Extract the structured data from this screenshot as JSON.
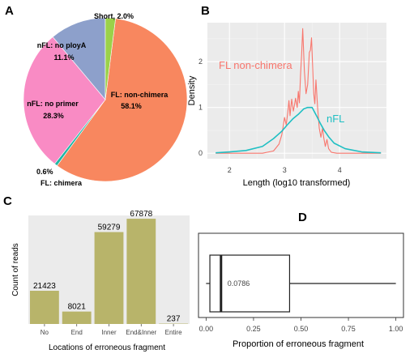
{
  "chart_data": [
    {
      "panel": "A",
      "type": "pie",
      "slices": [
        {
          "label": "FL: non-chimera",
          "percent": 58.1,
          "value": "58.1%",
          "color": "#F8875F"
        },
        {
          "label": "FL: chimera",
          "percent": 0.6,
          "value": "0.6%",
          "color": "#20B7A5"
        },
        {
          "label": "nFL: no primer",
          "percent": 28.3,
          "value": "28.3%",
          "color": "#F98BC4"
        },
        {
          "label": "nFL: no ployA",
          "percent": 11.1,
          "value": "11.1%",
          "color": "#8DA0CB"
        },
        {
          "label": "Short",
          "percent": 2.0,
          "value": "2.0%",
          "color": "#9BD149"
        }
      ]
    },
    {
      "panel": "B",
      "type": "line",
      "xlabel": "Length (log10 transformed)",
      "ylabel": "Density",
      "xlim": [
        1.6,
        4.85
      ],
      "ylim": [
        -0.12,
        2.85
      ],
      "xticks": [
        "2",
        "3",
        "4"
      ],
      "yticks": [
        "0",
        "1",
        "2"
      ],
      "background": "#EBEBEB",
      "grid": true,
      "series": [
        {
          "name": "FL non-chimera",
          "color": "#F8766D",
          "x": [
            1.75,
            2.6,
            2.8,
            2.9,
            2.95,
            2.98,
            3.0,
            3.03,
            3.06,
            3.08,
            3.1,
            3.13,
            3.16,
            3.18,
            3.2,
            3.23,
            3.25,
            3.27,
            3.29,
            3.31,
            3.33,
            3.36,
            3.39,
            3.42,
            3.45,
            3.47,
            3.49,
            3.51,
            3.53,
            3.55,
            3.57,
            3.6,
            3.63,
            3.66,
            3.69,
            3.71,
            3.74,
            3.77,
            3.8,
            3.85,
            3.95,
            4.75
          ],
          "y": [
            0,
            0,
            0.05,
            0.2,
            0.4,
            0.62,
            0.78,
            0.62,
            0.9,
            1.15,
            0.82,
            1.18,
            0.92,
            1.05,
            1.2,
            1.0,
            1.35,
            1.1,
            1.7,
            2.15,
            2.72,
            1.8,
            1.3,
            1.5,
            2.2,
            2.25,
            2.52,
            1.9,
            1.3,
            1.08,
            1.6,
            1.0,
            0.55,
            0.35,
            0.55,
            0.35,
            0.15,
            0.3,
            0.1,
            0.02,
            0,
            0
          ]
        },
        {
          "name": "nFL",
          "color": "#1FBFC3",
          "x": [
            1.75,
            2.0,
            2.3,
            2.6,
            2.8,
            2.95,
            3.05,
            3.15,
            3.25,
            3.35,
            3.42,
            3.5,
            3.58,
            3.65,
            3.72,
            3.8,
            3.9,
            4.1,
            4.4,
            4.75
          ],
          "y": [
            0.01,
            0.03,
            0.06,
            0.15,
            0.32,
            0.48,
            0.62,
            0.75,
            0.85,
            0.97,
            1.0,
            1.0,
            0.82,
            0.65,
            0.5,
            0.36,
            0.22,
            0.1,
            0.03,
            0.01
          ]
        }
      ]
    },
    {
      "panel": "C",
      "type": "bar",
      "xlabel": "Locations of erroneous fragment",
      "ylabel": "Count of reads",
      "categories": [
        "No",
        "End",
        "Inner",
        "End&Inner",
        "Entire"
      ],
      "values": [
        21423,
        8021,
        59279,
        67878,
        237
      ],
      "ylim": [
        0,
        70000
      ],
      "bar_color": "#B8B46A",
      "background": "#EBEBEB"
    },
    {
      "panel": "D",
      "type": "box",
      "xlabel": "Proportion of erroneous fragment",
      "xlim": [
        -0.04,
        1.04
      ],
      "xticks": [
        "0.00",
        "0.25",
        "0.50",
        "0.75",
        "1.00"
      ],
      "box": {
        "whisker_low": 0.0,
        "q1": 0.02,
        "median": 0.0786,
        "q3": 0.44,
        "whisker_high": 1.0
      },
      "median_label": "0.0786"
    }
  ]
}
